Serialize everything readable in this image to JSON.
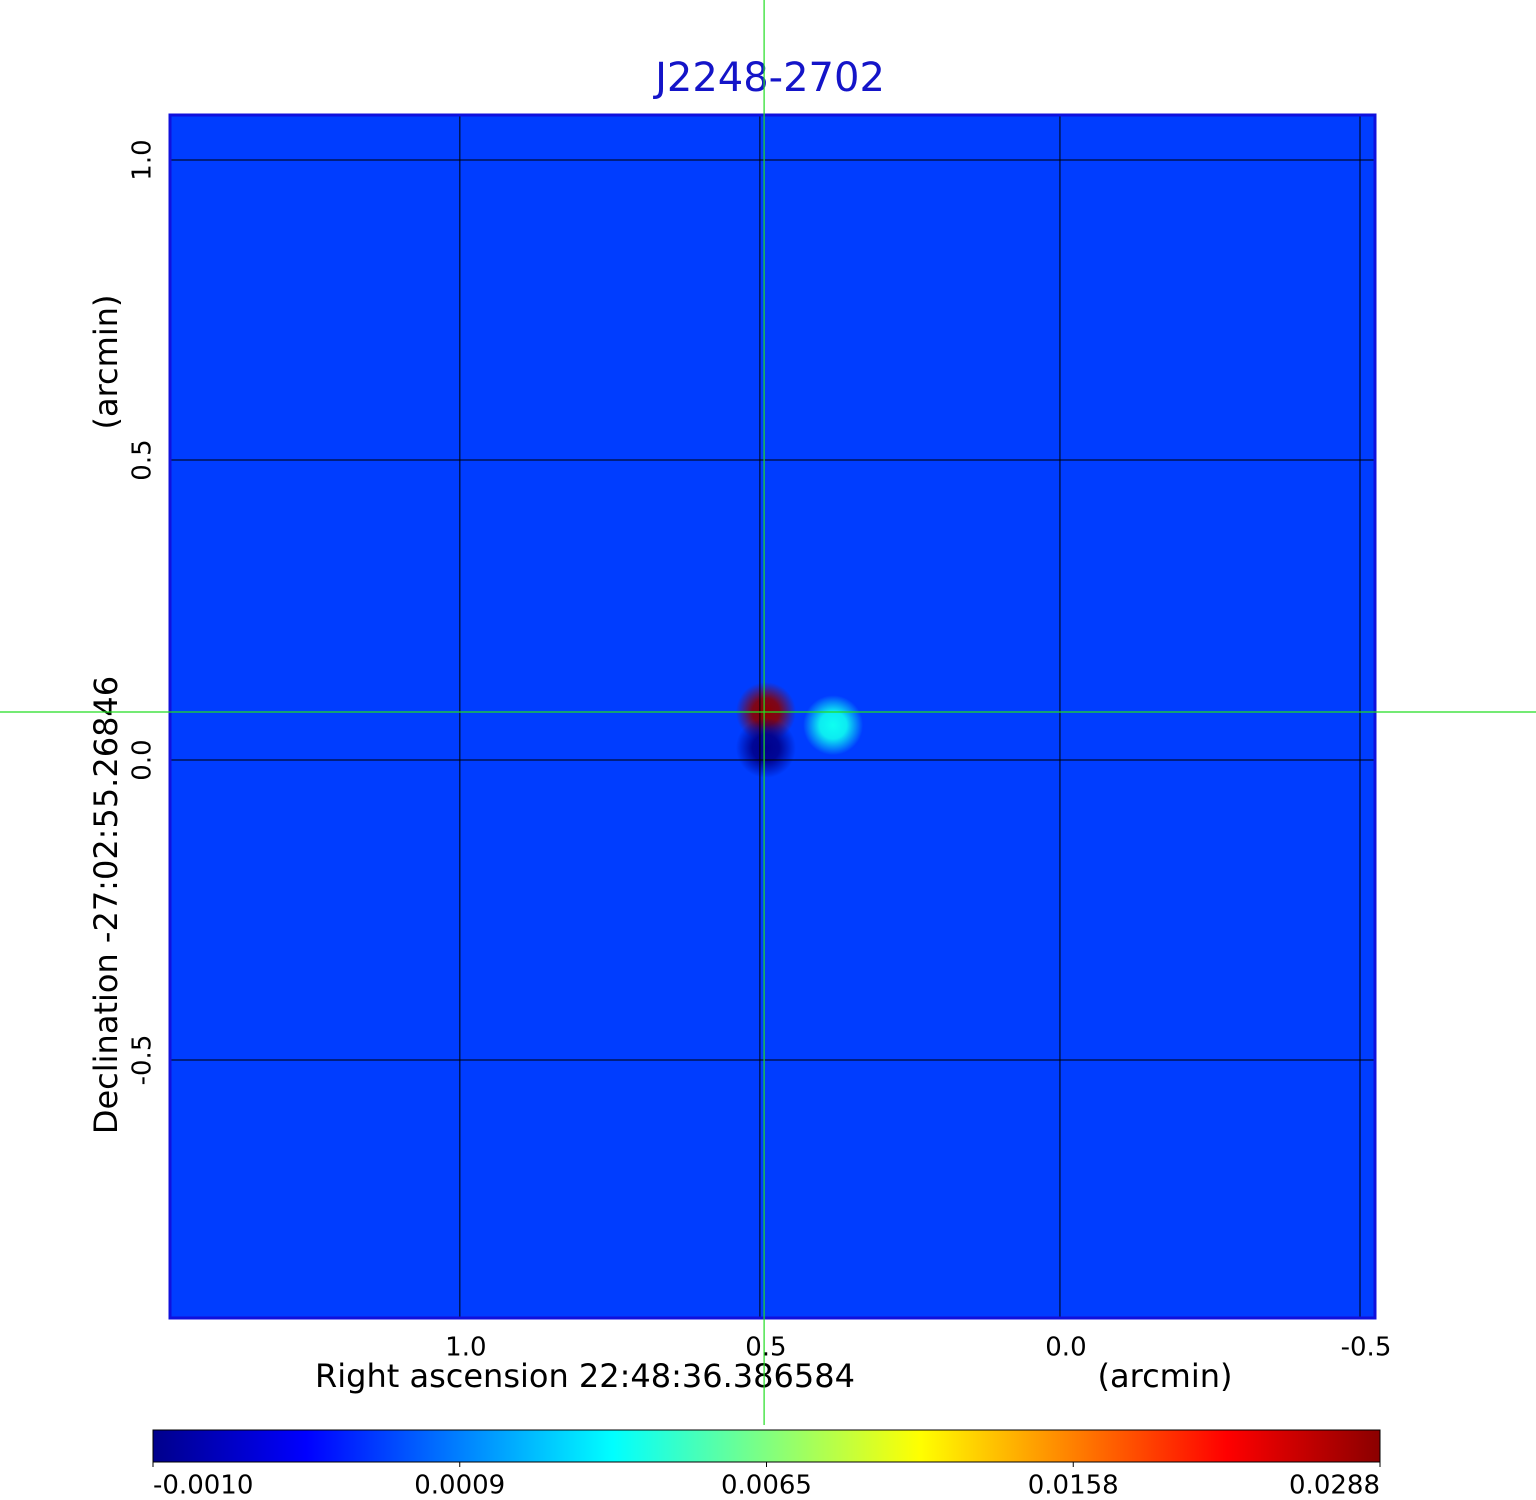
{
  "chart_data": {
    "type": "image",
    "title": "J2248-2702",
    "x_label": "Right ascension  22:48:36.386584",
    "x_unit": "(arcmin)",
    "y_label": "Declination  -27:02:55.26846",
    "y_unit": "(arcmin)",
    "xlim": [
      1.483,
      -0.525
    ],
    "ylim": [
      -0.93,
      1.075
    ],
    "xticks": [
      {
        "value": 1.0,
        "label": "1.0"
      },
      0.5,
      {
        "value": 0.0,
        "label": "0.0"
      },
      -0.5
    ],
    "yticks": [
      {
        "value": 1.0,
        "label": "1.0"
      },
      0.5,
      {
        "value": 0.0,
        "label": "0.0"
      },
      -0.5
    ],
    "grid": true,
    "background": 0.0004,
    "sources": [
      {
        "x": 0.49,
        "y": 0.08,
        "value": 0.0288
      },
      {
        "x": 0.378,
        "y": 0.058,
        "value": 0.004
      },
      {
        "x": 0.49,
        "y": 0.02,
        "value": -0.001
      }
    ],
    "crosshair": {
      "x": 0.493,
      "y": 0.08
    },
    "colormap": [
      "#00008b",
      "#0000ff",
      "#0080ff",
      "#00ffff",
      "#80ff80",
      "#ffff00",
      "#ff8000",
      "#ff0000",
      "#8b0000"
    ],
    "colorbar_ticks": [
      {
        "value": -0.001,
        "label": "-0.0010"
      },
      0.0009,
      0.0065,
      0.0158,
      0.0288
    ]
  }
}
